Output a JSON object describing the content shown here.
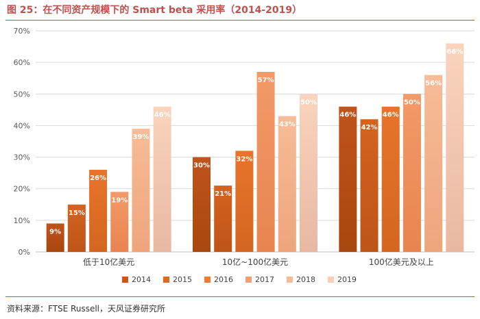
{
  "header": {
    "title": "图 25：在不同资产规模下的 Smart beta 采用率（2014-2019）"
  },
  "footer": {
    "source": "资料来源：FTSE Russell，天风证券研究所"
  },
  "colors": {
    "accent": "#c0504d",
    "rule": "#c55a11",
    "series": [
      "#c55a1b",
      "#dc6a24",
      "#ed7d31",
      "#f0a074",
      "#f5bc9a",
      "#f8d0b8"
    ]
  },
  "chart_data": {
    "type": "bar",
    "title": "在不同资产规模下的 Smart beta 采用率（2014-2019）",
    "xlabel": "",
    "ylabel": "",
    "ylim": [
      0,
      70
    ],
    "yticks": [
      "0%",
      "10%",
      "20%",
      "30%",
      "40%",
      "50%",
      "60%",
      "70%"
    ],
    "grid": true,
    "legend_position": "bottom",
    "categories": [
      "低于10亿美元",
      "10亿~100亿美元",
      "100亿美元及以上"
    ],
    "series": [
      {
        "name": "2014",
        "values": [
          9,
          30,
          46
        ],
        "labels": [
          "9%",
          "30%",
          "46%"
        ]
      },
      {
        "name": "2015",
        "values": [
          15,
          21,
          42
        ],
        "labels": [
          "15%",
          "21%",
          "42%"
        ]
      },
      {
        "name": "2016",
        "values": [
          26,
          32,
          46
        ],
        "labels": [
          "26%",
          "32%",
          "46%"
        ]
      },
      {
        "name": "2017",
        "values": [
          19,
          57,
          50
        ],
        "labels": [
          "19%",
          "57%",
          "50%"
        ]
      },
      {
        "name": "2018",
        "values": [
          39,
          43,
          56
        ],
        "labels": [
          "39%",
          "43%",
          "56%"
        ]
      },
      {
        "name": "2019",
        "values": [
          46,
          50,
          66
        ],
        "labels": [
          "46%",
          "50%",
          "66%"
        ]
      }
    ]
  }
}
